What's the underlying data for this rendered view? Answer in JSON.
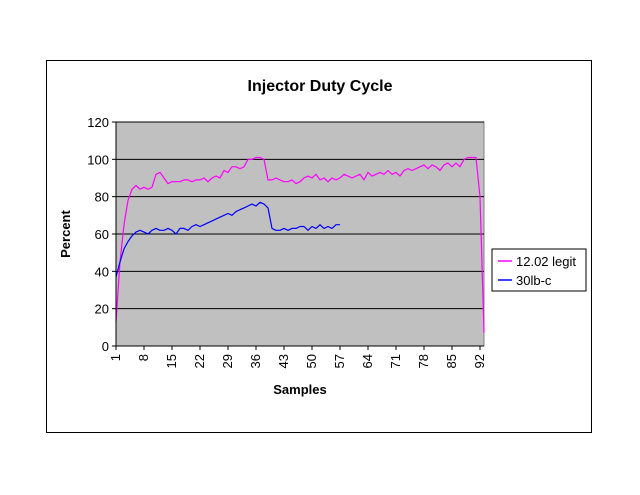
{
  "chart_data": {
    "type": "line",
    "title": "Injector Duty Cycle",
    "xlabel": "Samples",
    "ylabel": "Percent",
    "ylim": [
      0,
      120
    ],
    "yticks": [
      "0",
      "20",
      "40",
      "60",
      "80",
      "100",
      "120"
    ],
    "xticks": [
      "1",
      "8",
      "15",
      "22",
      "29",
      "36",
      "43",
      "50",
      "57",
      "64",
      "71",
      "78",
      "85",
      "92"
    ],
    "xlim": [
      1,
      93
    ],
    "grid": true,
    "legend": "right",
    "plot_bg": "#c0c0c0",
    "series": [
      {
        "name": "12.02 legit",
        "color": "#ff00ff",
        "x": [
          1,
          2,
          3,
          4,
          5,
          6,
          7,
          8,
          9,
          10,
          11,
          12,
          13,
          14,
          15,
          16,
          17,
          18,
          19,
          20,
          21,
          22,
          23,
          24,
          25,
          26,
          27,
          28,
          29,
          30,
          31,
          32,
          33,
          34,
          35,
          36,
          37,
          38,
          39,
          40,
          41,
          42,
          43,
          44,
          45,
          46,
          47,
          48,
          49,
          50,
          51,
          52,
          53,
          54,
          55,
          56,
          57,
          58,
          59,
          60,
          61,
          62,
          63,
          64,
          65,
          66,
          67,
          68,
          69,
          70,
          71,
          72,
          73,
          74,
          75,
          76,
          77,
          78,
          79,
          80,
          81,
          82,
          83,
          84,
          85,
          86,
          87,
          88,
          89,
          90,
          91,
          92,
          93
        ],
        "values": [
          13,
          45,
          65,
          78,
          84,
          86,
          84,
          85,
          84,
          85,
          92,
          93,
          90,
          87,
          88,
          88,
          88,
          89,
          89,
          88,
          89,
          89,
          90,
          88,
          90,
          91,
          90,
          94,
          93,
          96,
          96,
          95,
          96,
          100,
          100,
          101,
          101,
          100,
          89,
          89,
          90,
          89,
          88,
          88,
          89,
          87,
          88,
          90,
          91,
          90,
          92,
          89,
          90,
          88,
          90,
          89,
          90,
          92,
          91,
          90,
          91,
          92,
          89,
          93,
          91,
          92,
          93,
          92,
          94,
          92,
          93,
          91,
          94,
          95,
          94,
          95,
          96,
          97,
          95,
          97,
          96,
          94,
          97,
          98,
          96,
          98,
          96,
          100,
          101,
          101,
          101,
          80,
          7
        ]
      },
      {
        "name": "30lb-c",
        "color": "#0000ff",
        "x": [
          1,
          2,
          3,
          4,
          5,
          6,
          7,
          8,
          9,
          10,
          11,
          12,
          13,
          14,
          15,
          16,
          17,
          18,
          19,
          20,
          21,
          22,
          23,
          24,
          25,
          26,
          27,
          28,
          29,
          30,
          31,
          32,
          33,
          34,
          35,
          36,
          37,
          38,
          39,
          40,
          41,
          42,
          43,
          44,
          45,
          46,
          47,
          48,
          49,
          50,
          51,
          52,
          53,
          54,
          55,
          56,
          57
        ],
        "values": [
          37,
          45,
          52,
          56,
          59,
          61,
          62,
          61,
          60,
          62,
          63,
          62,
          62,
          63,
          62,
          60,
          63,
          63,
          62,
          64,
          65,
          64,
          65,
          66,
          67,
          68,
          69,
          70,
          71,
          70,
          72,
          73,
          74,
          75,
          76,
          75,
          77,
          76,
          74,
          63,
          62,
          62,
          63,
          62,
          63,
          63,
          64,
          64,
          62,
          64,
          63,
          65,
          63,
          64,
          63,
          65,
          65
        ]
      }
    ]
  }
}
